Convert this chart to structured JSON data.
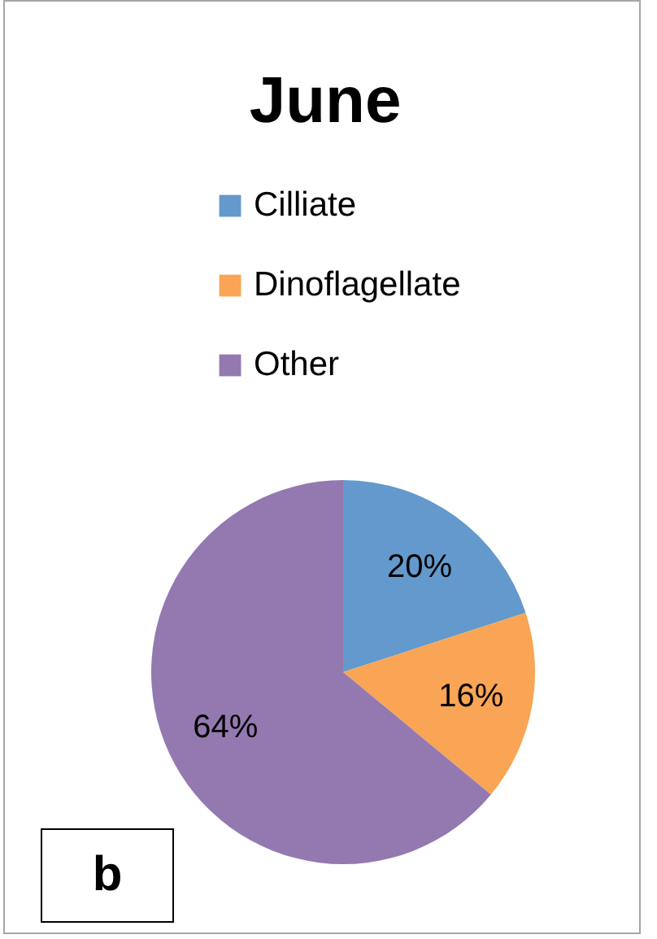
{
  "chart_data": {
    "type": "pie",
    "title": "June",
    "categories": [
      "Cilliate",
      "Dinoflagellate",
      "Other"
    ],
    "values": [
      20,
      16,
      64
    ],
    "colors": [
      "#6399cc",
      "#f9a555",
      "#9479b0"
    ],
    "value_labels": [
      "20%",
      "16%",
      "64%"
    ],
    "legend": "top",
    "annotations": [
      "b"
    ]
  }
}
